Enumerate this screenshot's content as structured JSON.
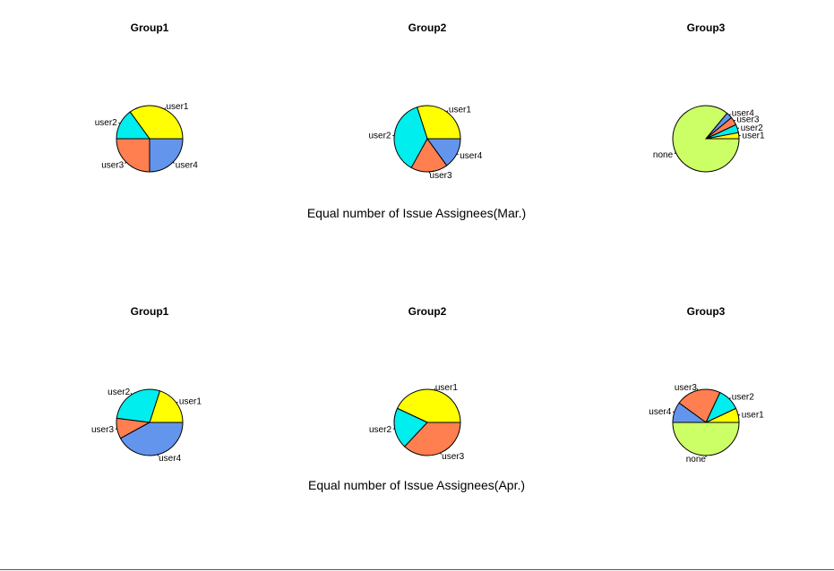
{
  "chart_data": {
    "type": "pie",
    "colors": {
      "user1": "#FFFF00",
      "user2": "#00EEEE",
      "user3": "#FF7F50",
      "user4": "#6495ED",
      "none": "#CCFF66"
    },
    "rows": [
      {
        "title": "Equal number of Issue Assignees(Mar.)",
        "pies": [
          {
            "title": "Group1",
            "slices": [
              {
                "label": "user1",
                "value": 35
              },
              {
                "label": "user2",
                "value": 15
              },
              {
                "label": "user3",
                "value": 25
              },
              {
                "label": "user4",
                "value": 25
              }
            ]
          },
          {
            "title": "Group2",
            "slices": [
              {
                "label": "user1",
                "value": 30
              },
              {
                "label": "user2",
                "value": 37
              },
              {
                "label": "user3",
                "value": 18
              },
              {
                "label": "user4",
                "value": 15
              }
            ]
          },
          {
            "title": "Group3",
            "slices": [
              {
                "label": "user1",
                "value": 3
              },
              {
                "label": "user2",
                "value": 4
              },
              {
                "label": "user3",
                "value": 4
              },
              {
                "label": "user4",
                "value": 3
              },
              {
                "label": "none",
                "value": 86
              }
            ]
          }
        ]
      },
      {
        "title": "Equal number of Issue Assignees(Apr.)",
        "pies": [
          {
            "title": "Group1",
            "slices": [
              {
                "label": "user1",
                "value": 20
              },
              {
                "label": "user2",
                "value": 28
              },
              {
                "label": "user3",
                "value": 10
              },
              {
                "label": "user4",
                "value": 42
              }
            ]
          },
          {
            "title": "Group2",
            "slices": [
              {
                "label": "user1",
                "value": 43
              },
              {
                "label": "user2",
                "value": 20
              },
              {
                "label": "user3",
                "value": 37
              }
            ]
          },
          {
            "title": "Group3",
            "slices": [
              {
                "label": "user1",
                "value": 7
              },
              {
                "label": "user2",
                "value": 11
              },
              {
                "label": "user3",
                "value": 22
              },
              {
                "label": "user4",
                "value": 10
              },
              {
                "label": "none",
                "value": 50
              }
            ]
          }
        ]
      }
    ]
  }
}
